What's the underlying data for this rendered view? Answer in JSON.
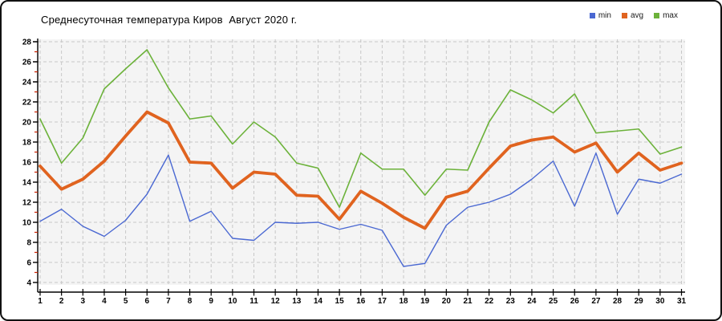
{
  "window": {
    "background": "#ffffff",
    "border_color": "#111111"
  },
  "chart_data": {
    "type": "line",
    "title": "Среднесуточная температура Киров  Август 2020 г.",
    "xlabel": "",
    "ylabel": "",
    "x": [
      1,
      2,
      3,
      4,
      5,
      6,
      7,
      8,
      9,
      10,
      11,
      12,
      13,
      14,
      15,
      16,
      17,
      18,
      19,
      20,
      21,
      22,
      23,
      24,
      25,
      26,
      27,
      28,
      29,
      30,
      31
    ],
    "series": [
      {
        "name": "min",
        "color": "#4a68d2",
        "values": [
          10.1,
          11.3,
          9.6,
          8.6,
          10.2,
          12.8,
          16.7,
          10.1,
          11.1,
          8.4,
          8.2,
          10.0,
          9.9,
          10.0,
          9.3,
          9.8,
          9.2,
          5.6,
          5.9,
          9.7,
          11.5,
          12.0,
          12.8,
          14.3,
          16.1,
          11.6,
          16.9,
          10.8,
          14.3,
          13.9,
          14.8
        ]
      },
      {
        "name": "avg",
        "color": "#e0631f",
        "values": [
          15.6,
          13.3,
          14.3,
          16.1,
          18.6,
          21.0,
          19.9,
          16.0,
          15.9,
          13.4,
          15.0,
          14.8,
          12.7,
          12.6,
          10.3,
          13.1,
          11.9,
          10.5,
          9.4,
          12.5,
          13.1,
          15.4,
          17.6,
          18.2,
          18.5,
          17.0,
          17.9,
          15.0,
          16.9,
          15.2,
          15.9
        ]
      },
      {
        "name": "max",
        "color": "#6cb23a",
        "values": [
          20.3,
          15.9,
          18.4,
          23.3,
          25.3,
          27.2,
          23.4,
          20.3,
          20.6,
          17.8,
          20.0,
          18.5,
          15.9,
          15.4,
          11.5,
          16.9,
          15.3,
          15.3,
          12.7,
          15.3,
          15.2,
          20.0,
          23.2,
          22.2,
          20.9,
          22.8,
          18.9,
          19.1,
          19.3,
          16.8,
          17.5
        ]
      }
    ],
    "ylim": [
      4,
      28
    ],
    "y_major_step": 2,
    "y_minor_step": 1,
    "grid": {
      "on": true,
      "color": "#c7c7c7",
      "dash": "4,3"
    },
    "plot_bg": "#f4f4f4",
    "axis_color": "#000000",
    "tick_label_color": "#000000",
    "minor_tick_color": "#cc2200",
    "legend_position": "top-right"
  }
}
